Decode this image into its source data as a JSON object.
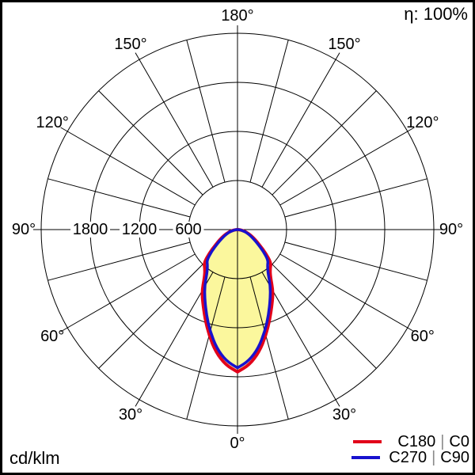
{
  "efficiency_label": "η: 100%",
  "unit_label": "cd/klm",
  "legend": {
    "separator_color": "#8a8a8a",
    "items": [
      {
        "parts": [
          "C180",
          "C0"
        ],
        "separator": "|",
        "color": "#e2001a"
      },
      {
        "parts": [
          "C270",
          "C90"
        ],
        "separator": "|",
        "color": "#1812ce"
      }
    ]
  },
  "colors": {
    "c0_curve": "#e2001a",
    "c90_curve": "#1812ce",
    "beam_fill": "#fbf79d",
    "grid": "#000000",
    "background": "#ffffff",
    "frame": "#000000"
  },
  "chart_data": {
    "type": "line",
    "coordinate_system": "polar",
    "description": "Luminous intensity distribution curve, 0° at bottom, symmetric about vertical axis",
    "angle_ticks_deg": [
      0,
      30,
      60,
      90,
      120,
      150,
      180
    ],
    "angle_tick_labels": [
      "0°",
      "30°",
      "60°",
      "90°",
      "120°",
      "150°",
      "180°"
    ],
    "angle_minor_step_deg": 15,
    "symmetric_about_vertical": true,
    "radial_axis": {
      "unit": "cd/klm",
      "ticks": [
        600,
        1200,
        1800
      ],
      "tick_labels": [
        "600",
        "1200",
        "1800"
      ],
      "max": 2400
    },
    "efficiency": "100%",
    "fill_color": "#fbf79d",
    "gamma_deg": [
      0,
      5,
      10,
      15,
      20,
      25,
      30,
      35,
      40,
      45,
      50,
      55,
      60,
      65,
      70,
      75,
      80,
      85,
      90
    ],
    "series": [
      {
        "name": "C180 | C0",
        "color": "#e2001a",
        "values": [
          1740,
          1660,
          1520,
          1340,
          1160,
          1000,
          870,
          700,
          620,
          580,
          450,
          330,
          250,
          190,
          140,
          100,
          60,
          30,
          5
        ]
      },
      {
        "name": "C270 | C90",
        "color": "#1812ce",
        "values": [
          1690,
          1610,
          1470,
          1290,
          1110,
          945,
          805,
          650,
          570,
          530,
          410,
          300,
          225,
          170,
          125,
          90,
          50,
          25,
          5
        ]
      }
    ],
    "legend_position": "bottom-right",
    "grid": true
  }
}
